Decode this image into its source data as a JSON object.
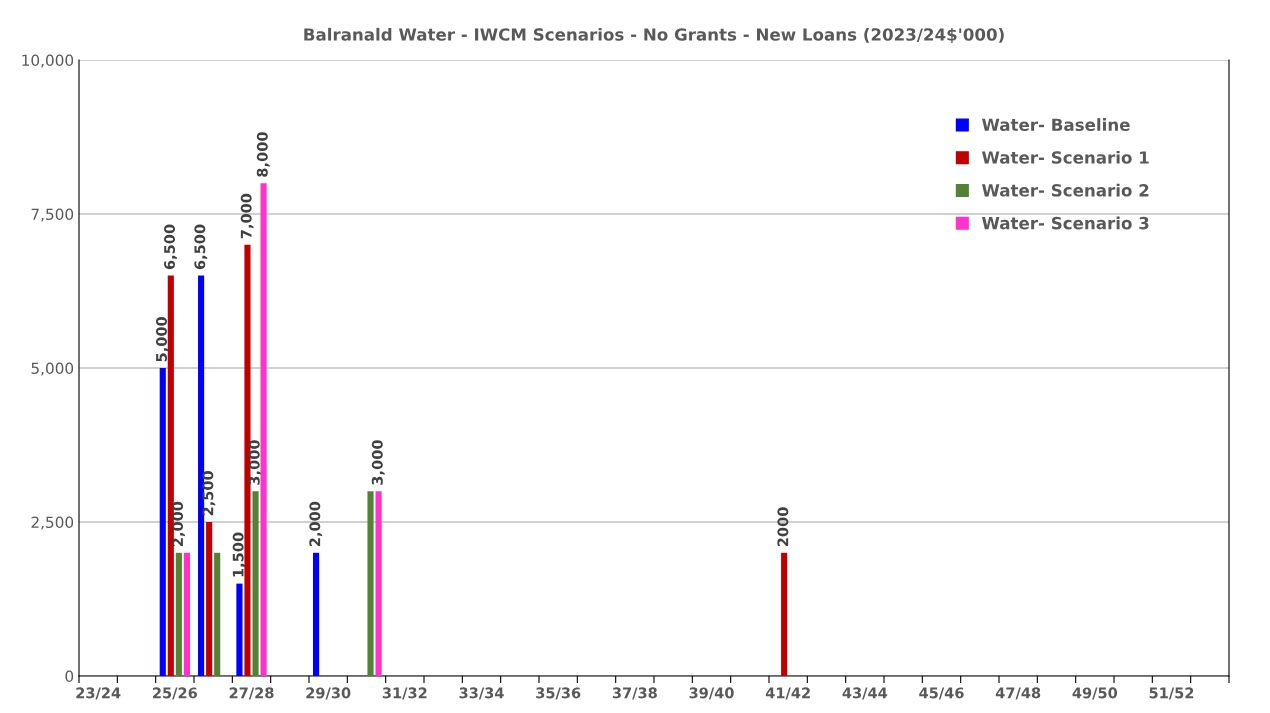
{
  "chart_data": {
    "type": "bar",
    "title": "Balranald Water - IWCM Scenarios - No Grants - New Loans (2023/24$'000)",
    "categories": [
      "23/24",
      null,
      "25/26",
      null,
      "27/28",
      null,
      "29/30",
      null,
      "31/32",
      null,
      "33/34",
      null,
      "35/36",
      null,
      "37/38",
      null,
      "39/40",
      null,
      "41/42",
      null,
      "43/44",
      null,
      "45/46",
      null,
      "47/48",
      null,
      "49/50",
      null,
      "51/52",
      null
    ],
    "series": [
      {
        "name": "Water- Baseline",
        "color": "#0000ff",
        "values": [
          null,
          null,
          5000,
          6500,
          1500,
          null,
          2000,
          null,
          null,
          null,
          null,
          null,
          null,
          null,
          null,
          null,
          null,
          null,
          null,
          null,
          null,
          null,
          null,
          null,
          null,
          null,
          null,
          null,
          null,
          null
        ],
        "value_labels": [
          null,
          null,
          "5,000",
          "6,500",
          "1,500",
          null,
          "2,000",
          null,
          null,
          null,
          null,
          null,
          null,
          null,
          null,
          null,
          null,
          null,
          null,
          null,
          null,
          null,
          null,
          null,
          null,
          null,
          null,
          null,
          null,
          null
        ]
      },
      {
        "name": "Water- Scenario 1",
        "color": "#c00000",
        "values": [
          null,
          null,
          6500,
          2500,
          7000,
          null,
          null,
          null,
          null,
          null,
          null,
          null,
          null,
          null,
          null,
          null,
          null,
          null,
          2000,
          null,
          null,
          null,
          null,
          null,
          null,
          null,
          null,
          null,
          null,
          null
        ],
        "value_labels": [
          null,
          null,
          "6,500",
          "2,500",
          "7,000",
          null,
          null,
          null,
          null,
          null,
          null,
          null,
          null,
          null,
          null,
          null,
          null,
          null,
          "2000",
          null,
          null,
          null,
          null,
          null,
          null,
          null,
          null,
          null,
          null,
          null
        ]
      },
      {
        "name": "Water- Scenario 2",
        "color": "#548235",
        "values": [
          null,
          null,
          2000,
          2000,
          3000,
          null,
          null,
          3000,
          null,
          null,
          null,
          null,
          null,
          null,
          null,
          null,
          null,
          null,
          null,
          null,
          null,
          null,
          null,
          null,
          null,
          null,
          null,
          null,
          null,
          null
        ],
        "value_labels": [
          null,
          null,
          "2,000",
          null,
          "3,000",
          null,
          null,
          null,
          null,
          null,
          null,
          null,
          null,
          null,
          null,
          null,
          null,
          null,
          null,
          null,
          null,
          null,
          null,
          null,
          null,
          null,
          null,
          null,
          null,
          null
        ]
      },
      {
        "name": "Water- Scenario 3",
        "color": "#ff33cc",
        "values": [
          null,
          null,
          2000,
          null,
          8000,
          null,
          null,
          3000,
          null,
          null,
          null,
          null,
          null,
          null,
          null,
          null,
          null,
          null,
          null,
          null,
          null,
          null,
          null,
          null,
          null,
          null,
          null,
          null,
          null,
          null
        ],
        "value_labels": [
          null,
          null,
          null,
          null,
          "8,000",
          null,
          null,
          "3,000",
          null,
          null,
          null,
          null,
          null,
          null,
          null,
          null,
          null,
          null,
          null,
          null,
          null,
          null,
          null,
          null,
          null,
          null,
          null,
          null,
          null,
          null
        ]
      }
    ],
    "ylim": [
      0,
      10000
    ],
    "yticks": [
      0,
      {
        "value": 2500,
        "label": "2,500"
      },
      {
        "value": 5000,
        "label": "5,000"
      },
      {
        "value": 7500,
        "label": "7,500"
      },
      {
        "value": 10000,
        "label": "10,000"
      }
    ],
    "grid": "y",
    "legend": "top right"
  }
}
